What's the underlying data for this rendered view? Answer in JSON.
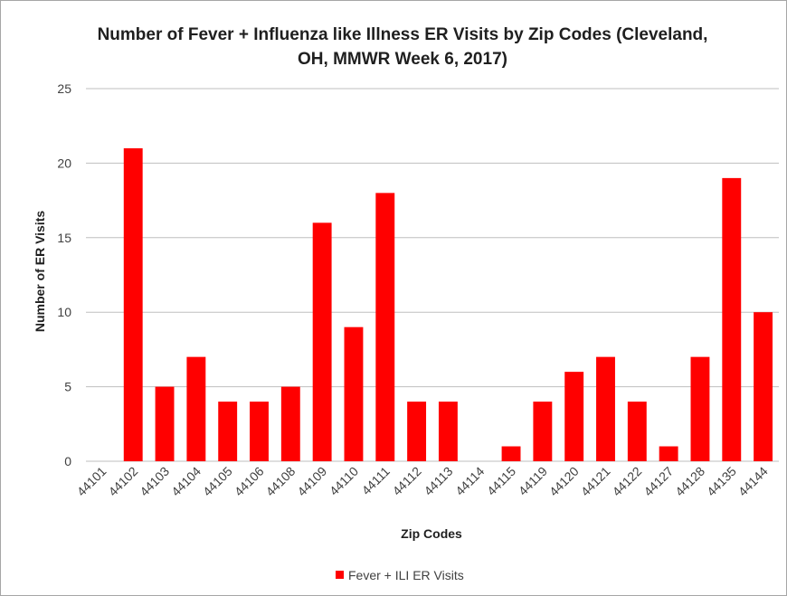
{
  "chart_data": {
    "type": "bar",
    "title": "Number of Fever + Influenza like Illness ER Visits by Zip Codes (Cleveland, OH, MMWR Week 6, 2017)",
    "title_lines": [
      "Number of Fever + Influenza like Illness ER Visits by Zip Codes (Cleveland,",
      "OH, MMWR Week 6, 2017)"
    ],
    "xlabel": "Zip Codes",
    "ylabel": "Number of ER Visits",
    "categories": [
      "44101",
      "44102",
      "44103",
      "44104",
      "44105",
      "44106",
      "44108",
      "44109",
      "44110",
      "44111",
      "44112",
      "44113",
      "44114",
      "44115",
      "44119",
      "44120",
      "44121",
      "44122",
      "44127",
      "44128",
      "44135",
      "44144"
    ],
    "series": [
      {
        "name": "Fever + ILI ER Visits",
        "values": [
          0,
          21,
          5,
          7,
          4,
          4,
          5,
          16,
          9,
          18,
          4,
          4,
          0,
          1,
          4,
          6,
          7,
          4,
          1,
          7,
          19,
          10
        ]
      }
    ],
    "ylim": [
      0,
      25
    ],
    "yticks": [
      0,
      5,
      10,
      15,
      20,
      25
    ],
    "grid": true,
    "legend_position": "bottom",
    "bar_color": "#ff0000"
  }
}
